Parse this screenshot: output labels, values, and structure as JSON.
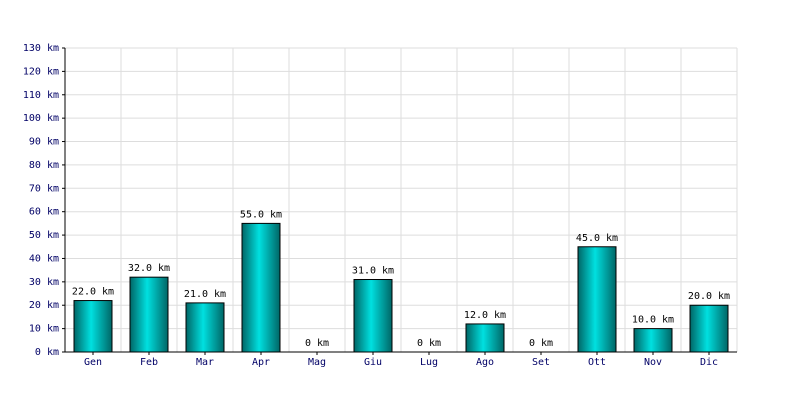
{
  "chart_data": {
    "type": "bar",
    "categories": [
      "Gen",
      "Feb",
      "Mar",
      "Apr",
      "Mag",
      "Giu",
      "Lug",
      "Ago",
      "Set",
      "Ott",
      "Nov",
      "Dic"
    ],
    "values": [
      22,
      32,
      21,
      55,
      0,
      31,
      0,
      12,
      0,
      45,
      10,
      20
    ],
    "value_labels": [
      "22.0 km",
      "32.0 km",
      "21.0 km",
      "55.0 km",
      "0 km",
      "31.0 km",
      "0 km",
      "12.0 km",
      "0 km",
      "45.0 km",
      "10.0 km",
      "20.0 km"
    ],
    "color": "#00e0e0",
    "ylim": [
      0,
      130
    ],
    "yticks": [
      {
        "value": 0,
        "label": "0 km"
      },
      {
        "value": 10,
        "label": "10 km"
      },
      {
        "value": 20,
        "label": "20 km"
      },
      {
        "value": 30,
        "label": "30 km"
      },
      {
        "value": 40,
        "label": "40 km"
      },
      {
        "value": 50,
        "label": "50 km"
      },
      {
        "value": 60,
        "label": "60 km"
      },
      {
        "value": 70,
        "label": "70 km"
      },
      {
        "value": 80,
        "label": "80 km"
      },
      {
        "value": 90,
        "label": "90 km"
      },
      {
        "value": 100,
        "label": "100 km"
      },
      {
        "value": 110,
        "label": "110 km"
      },
      {
        "value": 120,
        "label": "120 km"
      },
      {
        "value": 130,
        "label": "130 km"
      }
    ],
    "grid": true
  }
}
